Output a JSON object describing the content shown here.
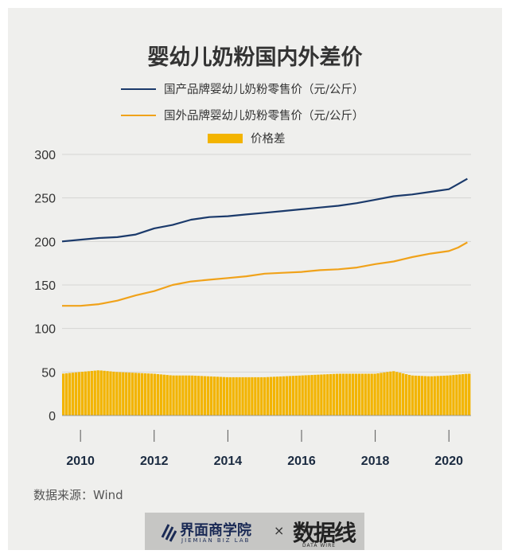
{
  "title": "婴幼儿奶粉国内外差价",
  "source": "数据来源：Wind",
  "footer": {
    "logo_cn": "界面商学院",
    "logo_en": "JIEMIAN BIZ LAB",
    "separator": "×",
    "brand": "数据线",
    "brand_sub": "DATA WIRE"
  },
  "colors": {
    "domestic": "#1b3a6b",
    "foreign": "#f0a21a",
    "gap": "#f3b400",
    "background": "#efefed"
  },
  "chart_data": {
    "type": "line",
    "title": "婴幼儿奶粉国内外差价",
    "xlabel": "",
    "ylabel": "",
    "ylim": [
      0,
      300
    ],
    "xlim": [
      2009.5,
      2020.6
    ],
    "yticks": [
      "0",
      "50",
      "100",
      "150",
      "200",
      "250",
      "300"
    ],
    "xticks": [
      "2010",
      "2012",
      "2014",
      "2016",
      "2018",
      "2020"
    ],
    "grid": "horizontal",
    "legend_position": "top",
    "x": [
      2009.5,
      2010.0,
      2010.5,
      2011.0,
      2011.5,
      2012.0,
      2012.5,
      2013.0,
      2013.5,
      2014.0,
      2014.5,
      2015.0,
      2015.5,
      2016.0,
      2016.5,
      2017.0,
      2017.5,
      2018.0,
      2018.5,
      2019.0,
      2019.5,
      2020.0,
      2020.25,
      2020.5
    ],
    "series": [
      {
        "name": "国产品牌婴幼儿奶粉零售价（元/公斤）",
        "type": "line",
        "values": [
          200,
          202,
          204,
          205,
          208,
          215,
          219,
          225,
          228,
          229,
          231,
          233,
          235,
          237,
          239,
          241,
          244,
          248,
          252,
          254,
          257,
          260,
          266,
          272
        ]
      },
      {
        "name": "国外品牌婴幼儿奶粉零售价（元/公斤）",
        "type": "line",
        "values": [
          126,
          126,
          128,
          132,
          138,
          143,
          150,
          154,
          156,
          158,
          160,
          163,
          164,
          165,
          167,
          168,
          170,
          174,
          177,
          182,
          186,
          189,
          193,
          199
        ]
      },
      {
        "name": "价格差",
        "type": "bar",
        "values": [
          48,
          50,
          52,
          50,
          49,
          48,
          46,
          46,
          45,
          44,
          44,
          44,
          45,
          46,
          47,
          48,
          48,
          48,
          51,
          46,
          45,
          46,
          47,
          48
        ]
      }
    ]
  }
}
